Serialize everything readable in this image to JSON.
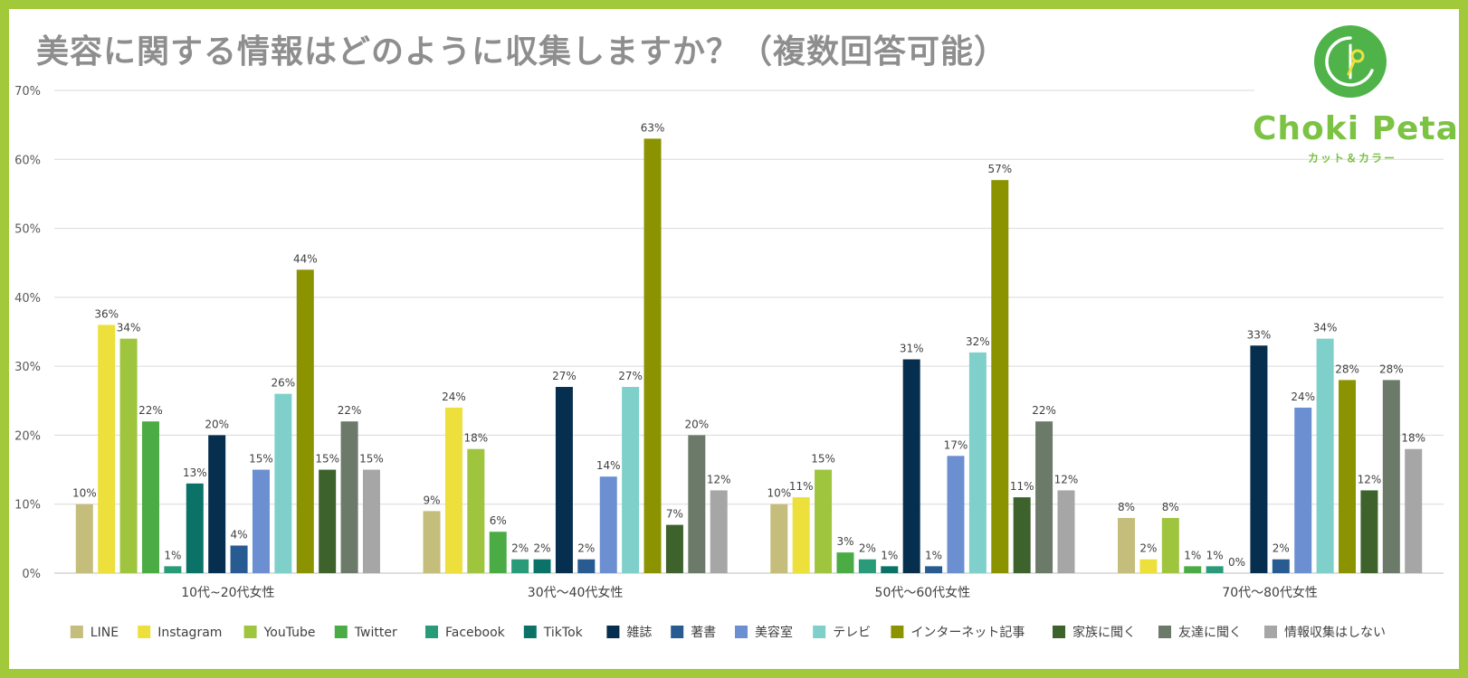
{
  "brand": {
    "name": "Choki Peta",
    "sub": "カット＆カラー",
    "frame_color": "#a2c93a",
    "logo_color": "#4fb34a",
    "text_color": "#7cc243"
  },
  "chart_data": {
    "type": "bar",
    "title": "美容に関する情報はどのように収集しますか？（複数回答可能）",
    "xlabel": "",
    "ylabel": "",
    "ylim": [
      0,
      70
    ],
    "yticks": [
      "0%",
      "10%",
      "20%",
      "30%",
      "40%",
      "50%",
      "60%",
      "70%"
    ],
    "grid": true,
    "legend_position": "bottom",
    "categories": [
      "10代~20代女性",
      "30代～40代女性",
      "50代～60代女性",
      "70代～80代女性"
    ],
    "series": [
      {
        "name": "LINE",
        "color": "#c4bd7b",
        "values": [
          10,
          9,
          10,
          8
        ]
      },
      {
        "name": "Instagram",
        "color": "#ede03c",
        "values": [
          36,
          24,
          11,
          2
        ]
      },
      {
        "name": "YouTube",
        "color": "#9fc43e",
        "values": [
          34,
          18,
          15,
          8
        ]
      },
      {
        "name": "Twitter",
        "color": "#4bac45",
        "values": [
          22,
          6,
          3,
          1
        ]
      },
      {
        "name": "Facebook",
        "color": "#2a9b78",
        "values": [
          1,
          2,
          2,
          1
        ]
      },
      {
        "name": "TikTok",
        "color": "#0b7268",
        "values": [
          13,
          2,
          1,
          0
        ]
      },
      {
        "name": "雑誌",
        "color": "#062e4e",
        "values": [
          20,
          27,
          31,
          33
        ]
      },
      {
        "name": "著書",
        "color": "#275b92",
        "values": [
          4,
          2,
          1,
          2
        ]
      },
      {
        "name": "美容室",
        "color": "#6b8fd0",
        "values": [
          15,
          14,
          17,
          24
        ]
      },
      {
        "name": "テレビ",
        "color": "#7fd0ca",
        "values": [
          26,
          27,
          32,
          34
        ]
      },
      {
        "name": "インターネット記事",
        "color": "#8b9300",
        "values": [
          44,
          63,
          57,
          28
        ]
      },
      {
        "name": "家族に聞く",
        "color": "#3d622b",
        "values": [
          15,
          7,
          11,
          12
        ]
      },
      {
        "name": "友達に聞く",
        "color": "#6c7a69",
        "values": [
          22,
          20,
          22,
          28
        ]
      },
      {
        "name": "情報収集はしない",
        "color": "#a6a6a6",
        "values": [
          15,
          12,
          12,
          18
        ]
      }
    ]
  }
}
